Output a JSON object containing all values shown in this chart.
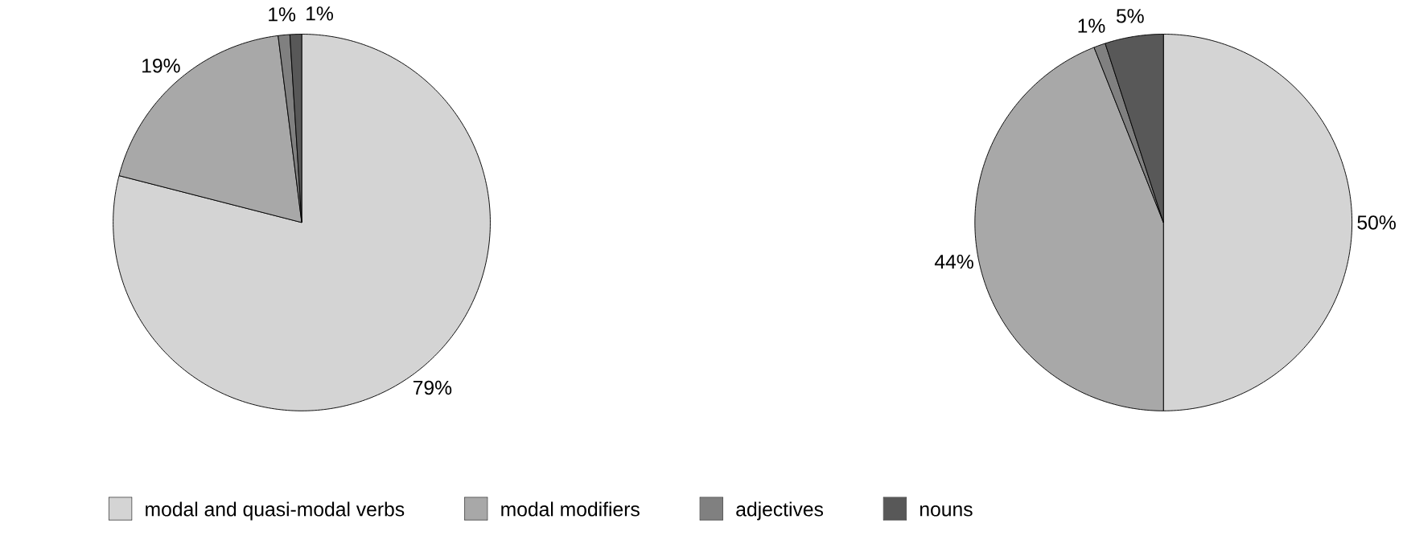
{
  "chart_data": [
    {
      "type": "pie",
      "categories": [
        "modal and quasi-modal verbs",
        "modal modifiers",
        "adjectives",
        "nouns"
      ],
      "values": [
        79,
        19,
        1,
        1
      ],
      "value_labels": [
        "79%",
        "19%",
        "1%",
        "1%"
      ],
      "colors": [
        "#d4d4d4",
        "#a8a8a8",
        "#808080",
        "#585858"
      ],
      "legend": "bottom"
    },
    {
      "type": "pie",
      "categories": [
        null,
        null,
        null,
        null
      ],
      "values": [
        50,
        44,
        1,
        5
      ],
      "value_labels": [
        "50%",
        "44%",
        "1%",
        "5%"
      ],
      "colors": [
        "#d4d4d4",
        "#a8a8a8",
        "#808080",
        "#585858"
      ]
    }
  ]
}
